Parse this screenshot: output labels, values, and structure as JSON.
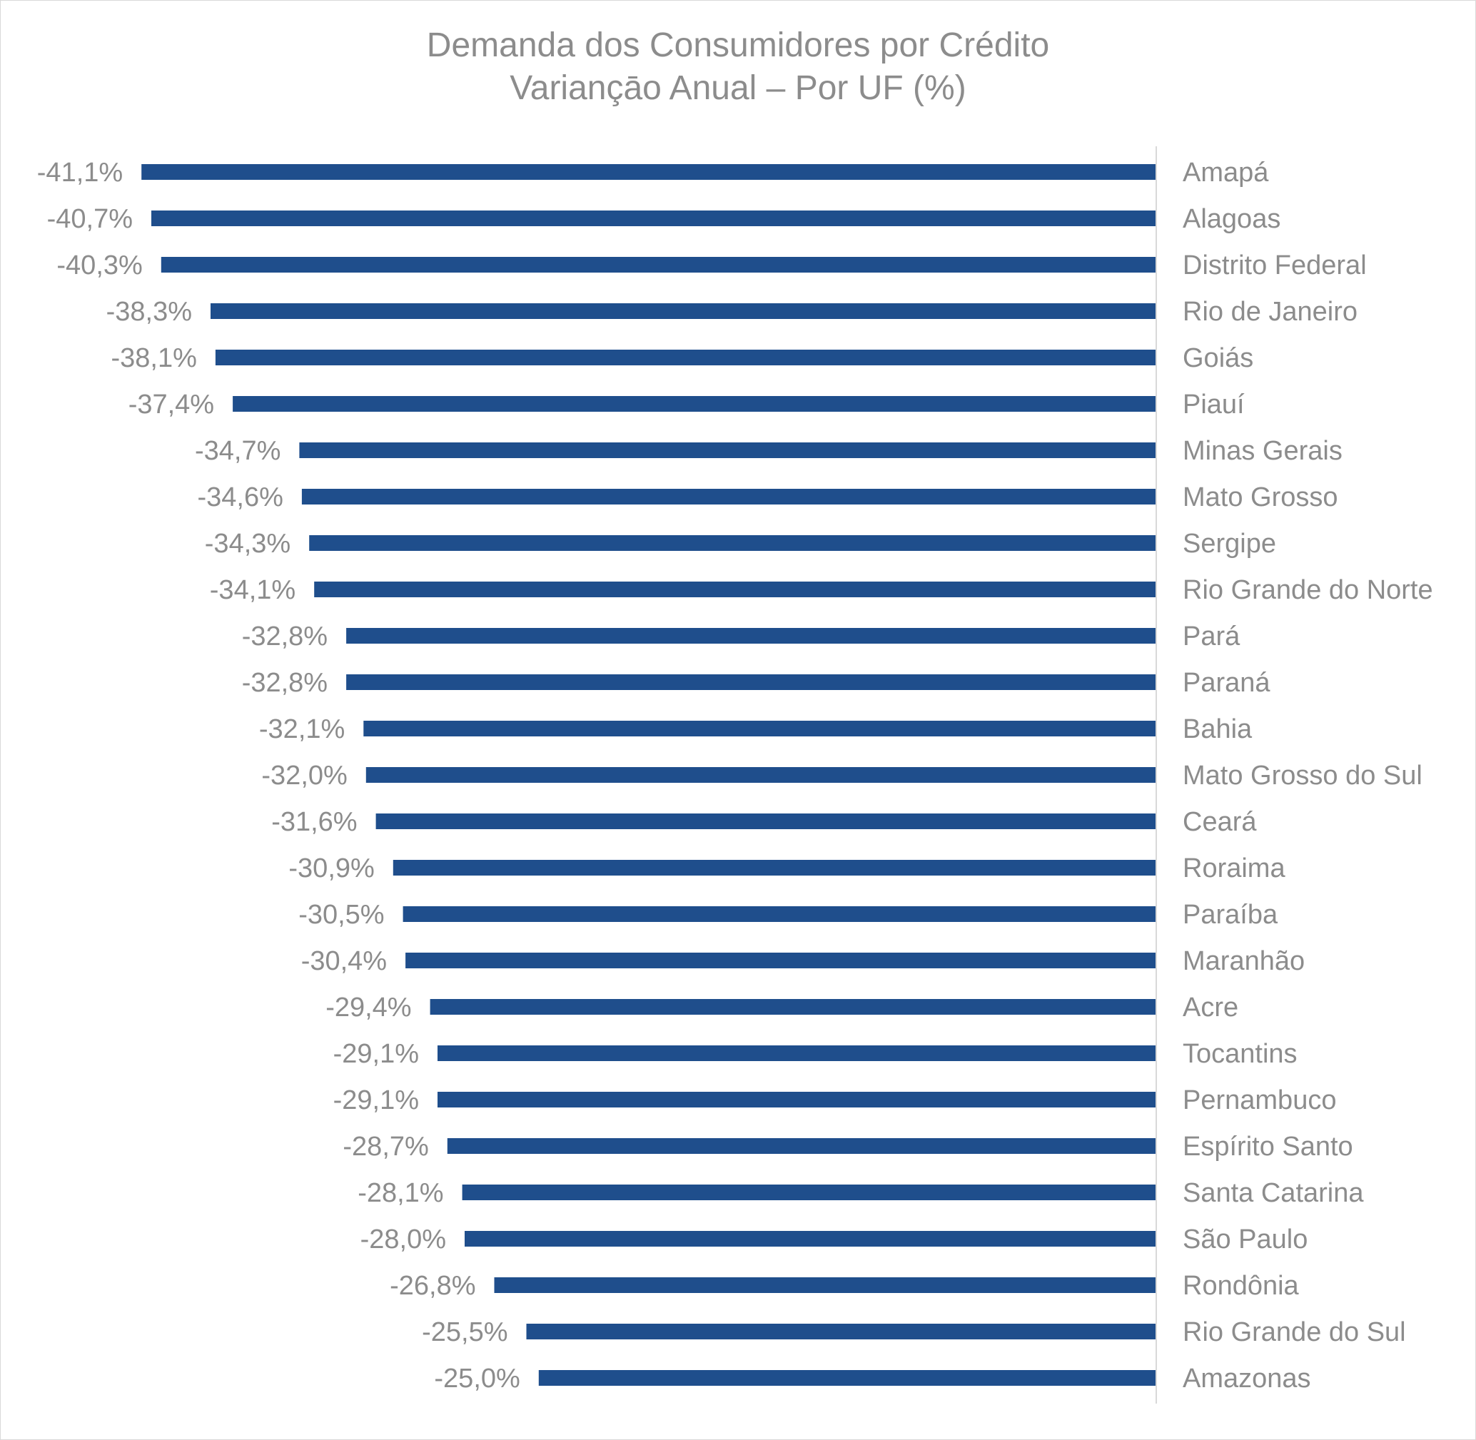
{
  "chart_data": {
    "type": "bar",
    "orientation": "horizontal",
    "title": "Demanda dos Consumidores por Crédito",
    "subtitle": "Variançāo Anual – Por UF (%)",
    "xlabel": "",
    "ylabel": "",
    "xlim": [
      -42,
      0
    ],
    "grid": false,
    "legend": "none",
    "bar_color": "#1f4e8c",
    "text_color": "#8c8c8c",
    "axis_color": "#d9d9d9",
    "categories": [
      "Amapá",
      "Alagoas",
      "Distrito Federal",
      "Rio de Janeiro",
      "Goiás",
      "Piauí",
      "Minas Gerais",
      "Mato Grosso",
      "Sergipe",
      "Rio Grande do Norte",
      "Pará",
      "Paraná",
      "Bahia",
      "Mato Grosso do Sul",
      "Ceará",
      "Roraima",
      "Paraíba",
      "Maranhão",
      "Acre",
      "Tocantins",
      "Pernambuco",
      "Espírito Santo",
      "Santa Catarina",
      "São Paulo",
      "Rondônia",
      "Rio Grande do Sul",
      "Amazonas"
    ],
    "values": [
      -41.1,
      -40.7,
      -40.3,
      -38.3,
      -38.1,
      -37.4,
      -34.7,
      -34.6,
      -34.3,
      -34.1,
      -32.8,
      -32.8,
      -32.1,
      -32.0,
      -31.6,
      -30.9,
      -30.5,
      -30.4,
      -29.4,
      -29.1,
      -29.1,
      -28.7,
      -28.1,
      -28.0,
      -26.8,
      -25.5,
      -25.0
    ],
    "data_labels": [
      "-41,1%",
      "-40,7%",
      "-40,3%",
      "-38,3%",
      "-38,1%",
      "-37,4%",
      "-34,7%",
      "-34,6%",
      "-34,3%",
      "-34,1%",
      "-32,8%",
      "-32,8%",
      "-32,1%",
      "-32,0%",
      "-31,6%",
      "-30,9%",
      "-30,5%",
      "-30,4%",
      "-29,4%",
      "-29,1%",
      "-29,1%",
      "-28,7%",
      "-28,1%",
      "-28,0%",
      "-26,8%",
      "-25,5%",
      "-25,0%"
    ]
  }
}
